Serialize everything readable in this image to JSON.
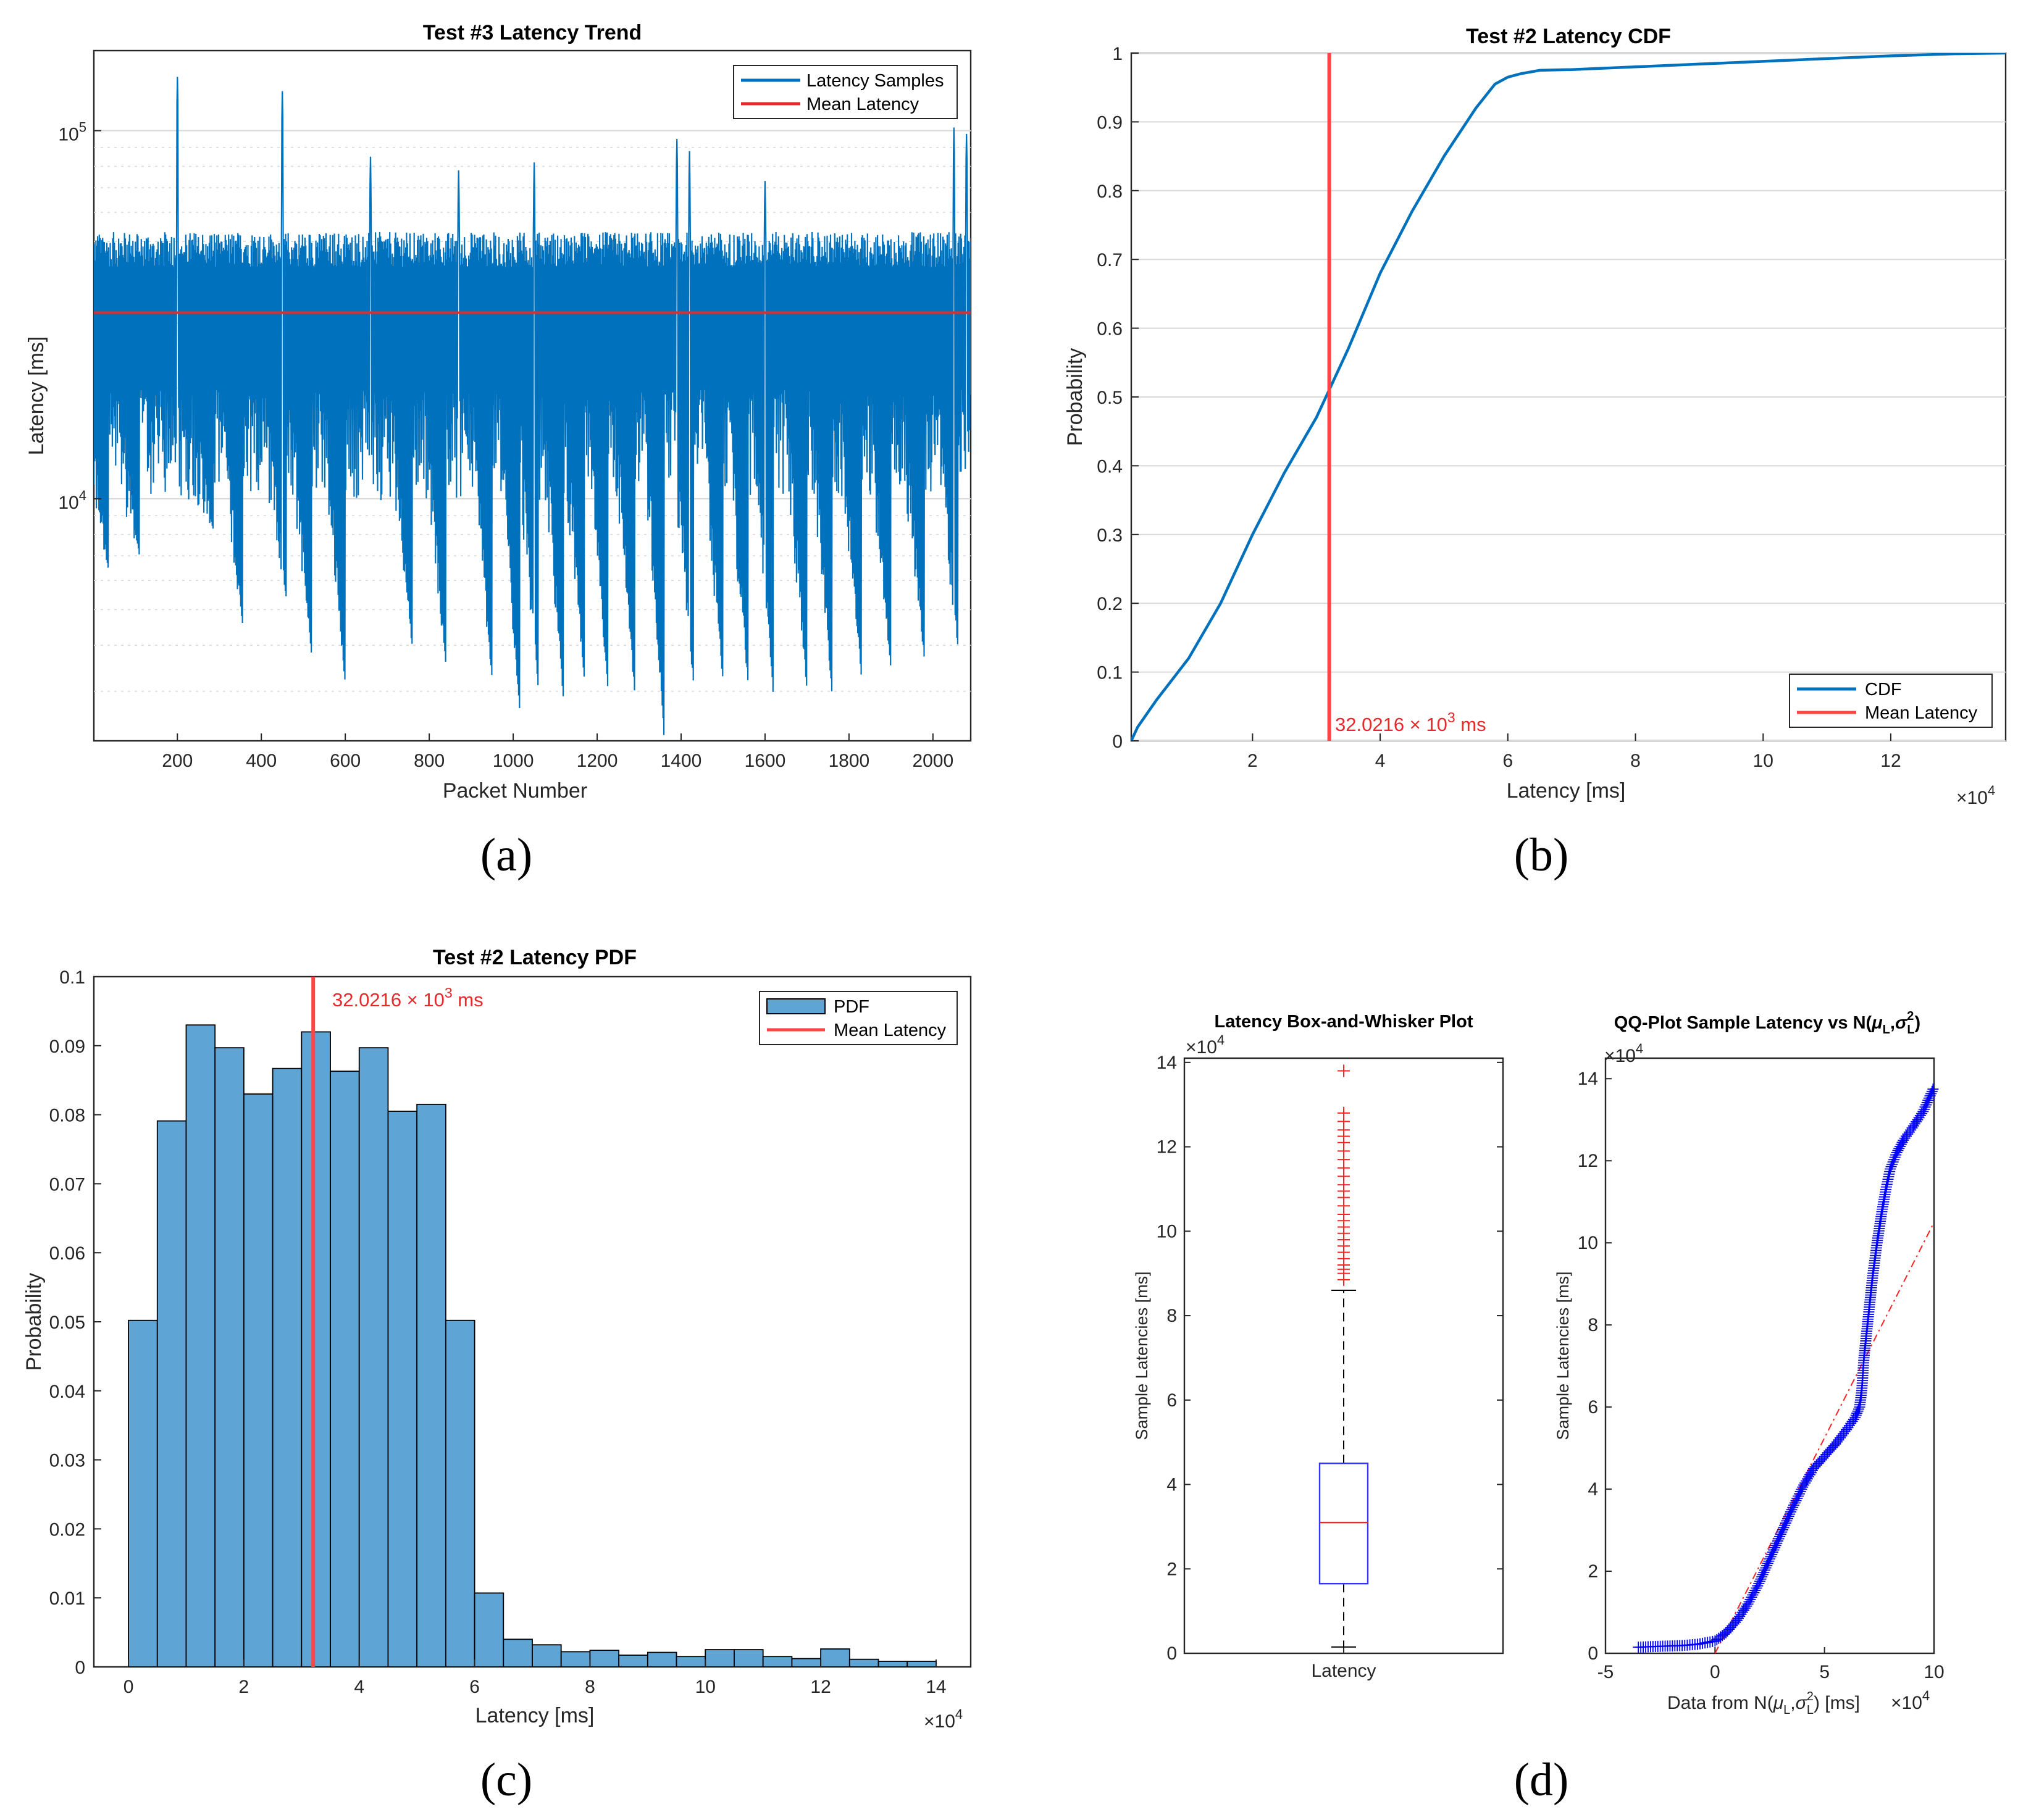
{
  "colors": {
    "blue": "#0072BD",
    "red": "#E8292B",
    "mean_line": "#FF4444",
    "bar_fill": "#5EA5D6",
    "box_blue": "#3333FF",
    "outlier_red": "#FF2222",
    "qq_blue": "#0000FF"
  },
  "panel_labels": [
    "(a)",
    "(b)",
    "(c)",
    "(d)"
  ],
  "chart_data": [
    {
      "id": "a",
      "type": "line",
      "title": "Test #3 Latency Trend",
      "xlabel": "Packet Number",
      "ylabel": "Latency [ms]",
      "yscale": "log",
      "xlim": [
        1,
        2090
      ],
      "ylim": [
        2200,
        165000
      ],
      "xticks": [
        200,
        400,
        600,
        800,
        1000,
        1200,
        1400,
        1600,
        1800,
        2000
      ],
      "xtick_labels": [
        "200",
        "400",
        "600",
        "800",
        "1000",
        "1200",
        "1400",
        "1600",
        "1800",
        "2000"
      ],
      "yticks": [
        10000,
        100000
      ],
      "ytick_labels": [
        {
          "base": "10",
          "exp": "4"
        },
        {
          "base": "10",
          "exp": "5"
        }
      ],
      "legend": [
        "Latency Samples",
        "Mean Latency"
      ],
      "legend_position": "top-right",
      "mean_value": 32021.6,
      "sample_band": {
        "typical_low": 11000,
        "typical_high": 52000
      },
      "spike_peaks": [
        {
          "x": 200,
          "y": 140000
        },
        {
          "x": 450,
          "y": 128000
        },
        {
          "x": 660,
          "y": 85000
        },
        {
          "x": 870,
          "y": 78000
        },
        {
          "x": 1050,
          "y": 82000
        },
        {
          "x": 1390,
          "y": 95000
        },
        {
          "x": 1420,
          "y": 88000
        },
        {
          "x": 1600,
          "y": 73000
        },
        {
          "x": 2050,
          "y": 102000
        },
        {
          "x": 2080,
          "y": 98000
        }
      ],
      "dip_minima": [
        {
          "x": 35,
          "y": 6500
        },
        {
          "x": 110,
          "y": 7000
        },
        {
          "x": 285,
          "y": 8300
        },
        {
          "x": 355,
          "y": 4600
        },
        {
          "x": 460,
          "y": 5300
        },
        {
          "x": 520,
          "y": 3700
        },
        {
          "x": 600,
          "y": 3100
        },
        {
          "x": 760,
          "y": 3900
        },
        {
          "x": 840,
          "y": 3500
        },
        {
          "x": 950,
          "y": 3200
        },
        {
          "x": 1015,
          "y": 2700
        },
        {
          "x": 1060,
          "y": 3000
        },
        {
          "x": 1120,
          "y": 2800
        },
        {
          "x": 1170,
          "y": 3200
        },
        {
          "x": 1225,
          "y": 3100
        },
        {
          "x": 1290,
          "y": 2900
        },
        {
          "x": 1360,
          "y": 2200
        },
        {
          "x": 1430,
          "y": 3100
        },
        {
          "x": 1500,
          "y": 3200
        },
        {
          "x": 1560,
          "y": 3100
        },
        {
          "x": 1620,
          "y": 2900
        },
        {
          "x": 1700,
          "y": 3000
        },
        {
          "x": 1760,
          "y": 2900
        },
        {
          "x": 1830,
          "y": 3200
        },
        {
          "x": 1900,
          "y": 3400
        },
        {
          "x": 1980,
          "y": 3600
        },
        {
          "x": 2060,
          "y": 3900
        }
      ]
    },
    {
      "id": "b",
      "type": "line",
      "title": "Test #2 Latency CDF",
      "xlabel": "Latency [ms]",
      "ylabel": "Probability",
      "xlim": [
        1000,
        138000
      ],
      "ylim": [
        0,
        1
      ],
      "xticks": [
        20000,
        40000,
        60000,
        80000,
        100000,
        120000
      ],
      "xtick_labels": [
        "2",
        "4",
        "6",
        "8",
        "10",
        "12"
      ],
      "x_multiplier": {
        "base": "×10",
        "exp": "4"
      },
      "yticks": [
        0,
        0.1,
        0.2,
        0.3,
        0.4,
        0.5,
        0.6,
        0.7,
        0.8,
        0.9,
        1
      ],
      "ytick_labels": [
        "0",
        "0.1",
        "0.2",
        "0.3",
        "0.4",
        "0.5",
        "0.6",
        "0.7",
        "0.8",
        "0.9",
        "1"
      ],
      "legend": [
        "CDF",
        "Mean Latency"
      ],
      "legend_position": "bottom-right",
      "mean_value": 32021.6,
      "annotation": {
        "text": "32.0216 × 10",
        "exp": "3",
        "unit": " ms"
      },
      "series": [
        {
          "name": "CDF",
          "x": [
            1000,
            2000,
            5000,
            10000,
            15000,
            20000,
            25000,
            30000,
            32000,
            35000,
            40000,
            45000,
            50000,
            55000,
            58000,
            60000,
            62000,
            65000,
            70000,
            80000,
            90000,
            100000,
            110000,
            120000,
            130000,
            138000
          ],
          "y": [
            0,
            0.02,
            0.06,
            0.12,
            0.2,
            0.3,
            0.39,
            0.47,
            0.51,
            0.57,
            0.68,
            0.77,
            0.85,
            0.92,
            0.955,
            0.965,
            0.97,
            0.975,
            0.976,
            0.98,
            0.984,
            0.988,
            0.992,
            0.996,
            0.999,
            1.0
          ]
        }
      ]
    },
    {
      "id": "c",
      "type": "bar",
      "title": "Test #2 Latency PDF",
      "xlabel": "Latency [ms]",
      "ylabel": "Probability",
      "xlim": [
        -6000,
        146000
      ],
      "ylim": [
        0,
        0.1
      ],
      "xticks": [
        0,
        20000,
        40000,
        60000,
        80000,
        100000,
        120000,
        140000
      ],
      "xtick_labels": [
        "0",
        "2",
        "4",
        "6",
        "8",
        "10",
        "12",
        "14"
      ],
      "x_multiplier": {
        "base": "×10",
        "exp": "4"
      },
      "yticks": [
        0,
        0.01,
        0.02,
        0.03,
        0.04,
        0.05,
        0.06,
        0.07,
        0.08,
        0.09,
        0.1
      ],
      "ytick_labels": [
        "0",
        "0.01",
        "0.02",
        "0.03",
        "0.04",
        "0.05",
        "0.06",
        "0.07",
        "0.08",
        "0.09",
        "0.1"
      ],
      "legend": [
        "PDF",
        "Mean Latency"
      ],
      "legend_position": "top-right",
      "mean_value": 32021.6,
      "annotation": {
        "text": "32.0216 × 10",
        "exp": "3",
        "unit": " ms"
      },
      "bin_start": 0,
      "bin_width": 5000,
      "values": [
        0.0502,
        0.0791,
        0.093,
        0.0897,
        0.083,
        0.0867,
        0.092,
        0.0863,
        0.0897,
        0.0805,
        0.0815,
        0.0502,
        0.0107,
        0.004,
        0.0032,
        0.0022,
        0.0024,
        0.0017,
        0.0021,
        0.0015,
        0.0025,
        0.0025,
        0.0015,
        0.0012,
        0.0026,
        0.0011,
        0.0008,
        0.0008
      ]
    },
    {
      "id": "d1",
      "type": "box",
      "title": "Latency Box-and-Whisker Plot",
      "ylabel": "Sample Latencies [ms]",
      "category": "Latency",
      "ylim": [
        0,
        141000
      ],
      "yticks": [
        0,
        20000,
        40000,
        60000,
        80000,
        100000,
        120000,
        140000
      ],
      "ytick_labels": [
        "0",
        "2",
        "4",
        "6",
        "8",
        "10",
        "12",
        "14"
      ],
      "y_multiplier": {
        "base": "×10",
        "exp": "4"
      },
      "whisker_low": 1500,
      "q1": 16500,
      "median": 31000,
      "q3": 45000,
      "whisker_high": 86000,
      "outliers": [
        88500,
        90000,
        91000,
        92000,
        93500,
        95000,
        96500,
        98000,
        99500,
        101000,
        102500,
        104000,
        106000,
        108000,
        109500,
        111000,
        113000,
        115000,
        117000,
        119000,
        121000,
        122500,
        124000,
        126000,
        128000,
        138000
      ]
    },
    {
      "id": "d2",
      "type": "scatter",
      "title_text": "QQ-Plot Sample Latency vs N(",
      "xlabel_text": "Data from N(",
      "xlabel_unit": ") [ms]",
      "ylabel": "Sample Latencies [ms]",
      "xlim": [
        -50000,
        100000
      ],
      "ylim": [
        0,
        145000
      ],
      "xticks": [
        -50000,
        0,
        50000,
        100000
      ],
      "xtick_labels": [
        "-5",
        "0",
        "5",
        "10"
      ],
      "yticks": [
        0,
        20000,
        40000,
        60000,
        80000,
        100000,
        120000,
        140000
      ],
      "ytick_labels": [
        "0",
        "2",
        "4",
        "6",
        "8",
        "10",
        "12",
        "14"
      ],
      "x_multiplier": {
        "base": "×10",
        "exp": "4"
      },
      "y_multiplier": {
        "base": "×10",
        "exp": "4"
      },
      "reference_line": {
        "x": [
          0,
          100000
        ],
        "y": [
          -2000,
          105000
        ]
      },
      "quantile_curve": {
        "x": [
          -35000,
          -25000,
          -15000,
          -8000,
          0,
          5000,
          10000,
          15000,
          20000,
          25000,
          30000,
          35000,
          40000,
          45000,
          50000,
          55000,
          60000,
          64000,
          66000,
          67000,
          68000,
          70000,
          72000,
          74000,
          76000,
          78000,
          80000,
          83000,
          86000,
          90000,
          95000,
          100000
        ],
        "y": [
          1500,
          1700,
          1900,
          2200,
          3000,
          5000,
          8000,
          12000,
          17000,
          23000,
          29000,
          35000,
          40500,
          45000,
          48000,
          51000,
          54500,
          57500,
          60000,
          64000,
          72000,
          82000,
          92000,
          100000,
          107000,
          113000,
          118000,
          122000,
          125000,
          128000,
          132000,
          138000
        ]
      }
    }
  ]
}
